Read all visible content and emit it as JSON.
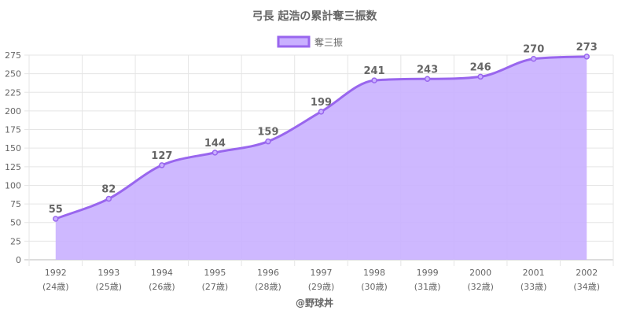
{
  "chart_data": {
    "type": "area",
    "title": "弓長 起浩の累計奪三振数",
    "legend": {
      "position": "top",
      "label": "奪三振"
    },
    "categories": [
      "1992",
      "1993",
      "1994",
      "1995",
      "1996",
      "1997",
      "1998",
      "1999",
      "2000",
      "2001",
      "2002"
    ],
    "sublabels": [
      "(24歳)",
      "(25歳)",
      "(26歳)",
      "(27歳)",
      "(28歳)",
      "(29歳)",
      "(30歳)",
      "(31歳)",
      "(32歳)",
      "(33歳)",
      "(34歳)"
    ],
    "series": [
      {
        "name": "奪三振",
        "values": [
          55,
          82,
          127,
          144,
          159,
          199,
          241,
          243,
          246,
          270,
          273
        ]
      }
    ],
    "ylim": [
      0,
      275
    ],
    "yticks": [
      0,
      25,
      50,
      75,
      100,
      125,
      150,
      175,
      200,
      225,
      250,
      275
    ],
    "grid": true,
    "colors": {
      "line": "#9966ee",
      "fill": "#c9b0ff",
      "grid": "#e5e5e5",
      "text": "#666666"
    }
  },
  "credit": "@野球丼"
}
